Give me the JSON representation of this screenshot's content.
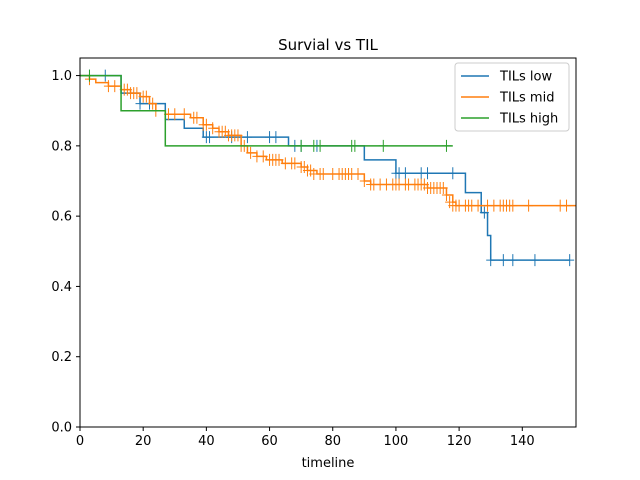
{
  "chart_data": {
    "type": "line",
    "title": "Survial vs TIL",
    "xlabel": "timeline",
    "ylabel": "",
    "xlim": [
      0,
      157
    ],
    "ylim": [
      0,
      1.05
    ],
    "xticks": [
      0,
      20,
      40,
      60,
      80,
      100,
      120,
      140
    ],
    "yticks": [
      0.0,
      0.2,
      0.4,
      0.6,
      0.8,
      1.0
    ],
    "xtick_labels": [
      "0",
      "20",
      "40",
      "60",
      "80",
      "100",
      "120",
      "140"
    ],
    "ytick_labels": [
      "0.0",
      "0.2",
      "0.4",
      "0.6",
      "0.8",
      "1.0"
    ],
    "legend_position": "top-right",
    "series": [
      {
        "name": "TILs low",
        "color": "#1f77b4",
        "steps": [
          [
            0,
            1.0
          ],
          [
            13,
            0.95
          ],
          [
            19,
            0.92
          ],
          [
            27,
            0.875
          ],
          [
            33,
            0.85
          ],
          [
            39,
            0.825
          ],
          [
            66,
            0.8
          ],
          [
            90,
            0.76
          ],
          [
            100,
            0.722
          ],
          [
            122,
            0.667
          ],
          [
            127,
            0.61
          ],
          [
            129,
            0.545
          ],
          [
            130,
            0.475
          ],
          [
            155,
            0.475
          ]
        ],
        "censored": [
          [
            3,
            1.0
          ],
          [
            8,
            1.0
          ],
          [
            19,
            0.92
          ],
          [
            22,
            0.92
          ],
          [
            40,
            0.825
          ],
          [
            41,
            0.825
          ],
          [
            48,
            0.825
          ],
          [
            53,
            0.825
          ],
          [
            60,
            0.825
          ],
          [
            62,
            0.825
          ],
          [
            68,
            0.8
          ],
          [
            70,
            0.8
          ],
          [
            75,
            0.8
          ],
          [
            100,
            0.722
          ],
          [
            101,
            0.722
          ],
          [
            103,
            0.722
          ],
          [
            108,
            0.722
          ],
          [
            110,
            0.722
          ],
          [
            118,
            0.722
          ],
          [
            128,
            0.61
          ],
          [
            130,
            0.475
          ],
          [
            134,
            0.475
          ],
          [
            137,
            0.475
          ],
          [
            144,
            0.475
          ],
          [
            155,
            0.475
          ]
        ]
      },
      {
        "name": "TILs mid",
        "color": "#ff7f0e",
        "steps": [
          [
            0,
            1.0
          ],
          [
            3,
            0.99
          ],
          [
            5,
            0.98
          ],
          [
            9,
            0.97
          ],
          [
            13,
            0.96
          ],
          [
            16,
            0.95
          ],
          [
            19,
            0.94
          ],
          [
            22,
            0.92
          ],
          [
            24,
            0.9
          ],
          [
            27,
            0.89
          ],
          [
            35,
            0.88
          ],
          [
            39,
            0.86
          ],
          [
            42,
            0.85
          ],
          [
            44,
            0.84
          ],
          [
            47,
            0.83
          ],
          [
            51,
            0.8
          ],
          [
            53,
            0.78
          ],
          [
            56,
            0.77
          ],
          [
            59,
            0.76
          ],
          [
            64,
            0.75
          ],
          [
            70,
            0.74
          ],
          [
            72,
            0.73
          ],
          [
            75,
            0.72
          ],
          [
            90,
            0.7
          ],
          [
            92,
            0.69
          ],
          [
            110,
            0.68
          ],
          [
            116,
            0.66
          ],
          [
            118,
            0.64
          ],
          [
            119,
            0.63
          ],
          [
            157,
            0.63
          ]
        ],
        "censored": [
          [
            3,
            0.99
          ],
          [
            9,
            0.97
          ],
          [
            11,
            0.97
          ],
          [
            14,
            0.96
          ],
          [
            15,
            0.96
          ],
          [
            16,
            0.95
          ],
          [
            17,
            0.95
          ],
          [
            18,
            0.95
          ],
          [
            20,
            0.94
          ],
          [
            21,
            0.94
          ],
          [
            23,
            0.92
          ],
          [
            24,
            0.9
          ],
          [
            28,
            0.89
          ],
          [
            30,
            0.89
          ],
          [
            33,
            0.89
          ],
          [
            36,
            0.88
          ],
          [
            37,
            0.88
          ],
          [
            39,
            0.86
          ],
          [
            40,
            0.86
          ],
          [
            42,
            0.85
          ],
          [
            44,
            0.84
          ],
          [
            45,
            0.84
          ],
          [
            46,
            0.84
          ],
          [
            47,
            0.83
          ],
          [
            48,
            0.83
          ],
          [
            49,
            0.83
          ],
          [
            50,
            0.83
          ],
          [
            51,
            0.8
          ],
          [
            52,
            0.8
          ],
          [
            54,
            0.78
          ],
          [
            56,
            0.77
          ],
          [
            58,
            0.77
          ],
          [
            60,
            0.76
          ],
          [
            61,
            0.76
          ],
          [
            62,
            0.76
          ],
          [
            63,
            0.76
          ],
          [
            65,
            0.75
          ],
          [
            67,
            0.75
          ],
          [
            68,
            0.75
          ],
          [
            70,
            0.74
          ],
          [
            71,
            0.74
          ],
          [
            72,
            0.73
          ],
          [
            73,
            0.73
          ],
          [
            74,
            0.72
          ],
          [
            76,
            0.72
          ],
          [
            77,
            0.72
          ],
          [
            80,
            0.72
          ],
          [
            82,
            0.72
          ],
          [
            83,
            0.72
          ],
          [
            84,
            0.72
          ],
          [
            85,
            0.72
          ],
          [
            86,
            0.72
          ],
          [
            88,
            0.72
          ],
          [
            90,
            0.7
          ],
          [
            92,
            0.69
          ],
          [
            93,
            0.69
          ],
          [
            95,
            0.69
          ],
          [
            97,
            0.69
          ],
          [
            99,
            0.69
          ],
          [
            100,
            0.69
          ],
          [
            101,
            0.69
          ],
          [
            103,
            0.69
          ],
          [
            104,
            0.69
          ],
          [
            106,
            0.69
          ],
          [
            107,
            0.69
          ],
          [
            108,
            0.69
          ],
          [
            109,
            0.69
          ],
          [
            110,
            0.68
          ],
          [
            111,
            0.68
          ],
          [
            112,
            0.68
          ],
          [
            113,
            0.68
          ],
          [
            114,
            0.68
          ],
          [
            115,
            0.68
          ],
          [
            116,
            0.66
          ],
          [
            117,
            0.64
          ],
          [
            118,
            0.63
          ],
          [
            119,
            0.63
          ],
          [
            120,
            0.63
          ],
          [
            122,
            0.63
          ],
          [
            123,
            0.63
          ],
          [
            124,
            0.63
          ],
          [
            126,
            0.63
          ],
          [
            129,
            0.63
          ],
          [
            131,
            0.63
          ],
          [
            133,
            0.63
          ],
          [
            134,
            0.63
          ],
          [
            135,
            0.63
          ],
          [
            136,
            0.63
          ],
          [
            137,
            0.63
          ],
          [
            142,
            0.63
          ],
          [
            152,
            0.63
          ],
          [
            154,
            0.63
          ]
        ]
      },
      {
        "name": "TILs high",
        "color": "#2ca02c",
        "steps": [
          [
            0,
            1.0
          ],
          [
            13,
            0.9
          ],
          [
            27,
            0.8
          ],
          [
            118,
            0.8
          ]
        ],
        "censored": [
          [
            3,
            1.0
          ],
          [
            70,
            0.8
          ],
          [
            74,
            0.8
          ],
          [
            76,
            0.8
          ],
          [
            86,
            0.8
          ],
          [
            87,
            0.8
          ],
          [
            96,
            0.8
          ],
          [
            116,
            0.8
          ]
        ]
      }
    ]
  }
}
